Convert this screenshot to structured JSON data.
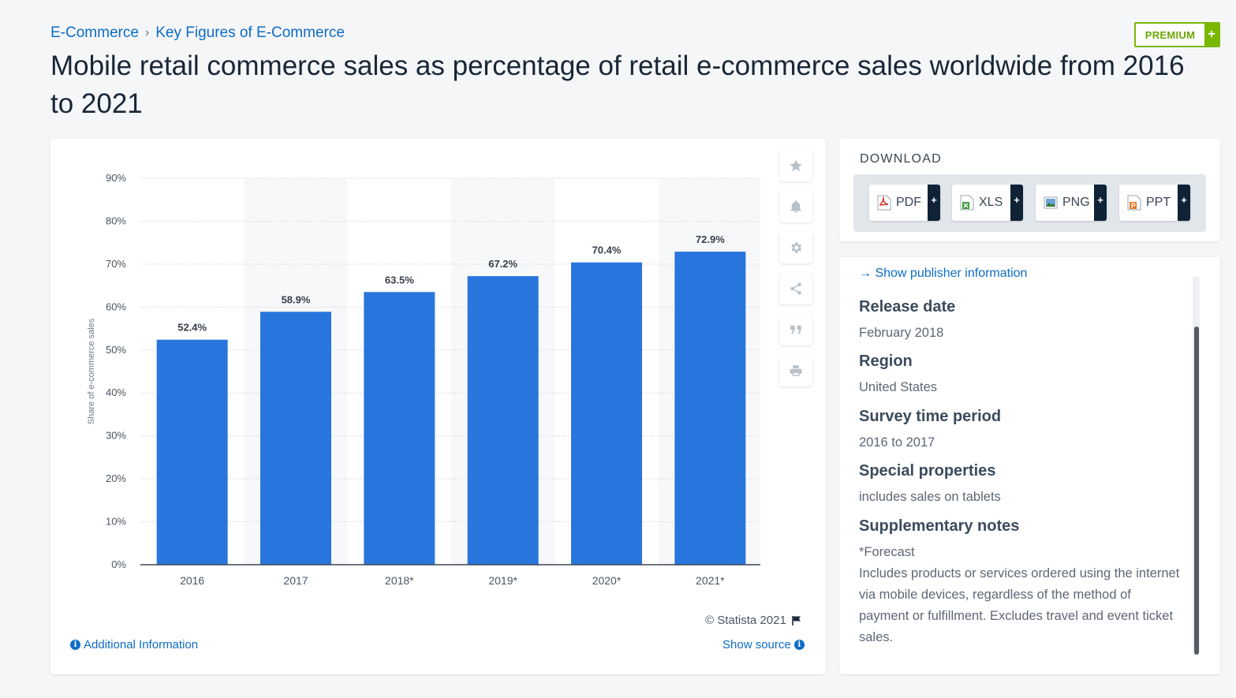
{
  "breadcrumb": {
    "item1": "E-Commerce",
    "sep": "›",
    "item2": "Key Figures of E-Commerce"
  },
  "premium": {
    "label": "PREMIUM",
    "plus": "+"
  },
  "page_title": "Mobile retail commerce sales as percentage of retail e-commerce sales worldwide from 2016 to 2021",
  "colors": {
    "bar": "#2876dd",
    "accent": "#0d6cc7",
    "premium": "#7ab800",
    "stripe": "#f7f8f9"
  },
  "chart_data": {
    "type": "bar",
    "categories": [
      "2016",
      "2017",
      "2018*",
      "2019*",
      "2020*",
      "2021*"
    ],
    "values": [
      52.4,
      58.9,
      63.5,
      67.2,
      70.4,
      72.9
    ],
    "value_labels": [
      "52.4%",
      "58.9%",
      "63.5%",
      "67.2%",
      "70.4%",
      "72.9%"
    ],
    "ylabel": "Share of e-commerce sales",
    "ylim": [
      0,
      90
    ],
    "yticks": [
      0,
      10,
      20,
      30,
      40,
      50,
      60,
      70,
      80,
      90
    ],
    "ytick_labels": [
      "0%",
      "10%",
      "20%",
      "30%",
      "40%",
      "50%",
      "60%",
      "70%",
      "80%",
      "90%"
    ],
    "grid": true
  },
  "tools": [
    "star-icon",
    "bell-icon",
    "gear-icon",
    "share-icon",
    "quote-icon",
    "print-icon"
  ],
  "credit": "© Statista 2021",
  "additional_info": "Additional Information",
  "show_source": "Show source",
  "download": {
    "title": "DOWNLOAD",
    "buttons": [
      {
        "label": "PDF",
        "icon": "pdf-file-icon",
        "plus": "+"
      },
      {
        "label": "XLS",
        "icon": "xls-file-icon",
        "plus": "+"
      },
      {
        "label": "PNG",
        "icon": "png-file-icon",
        "plus": "+"
      },
      {
        "label": "PPT",
        "icon": "ppt-file-icon",
        "plus": "+"
      }
    ]
  },
  "info": {
    "show_publisher": "→ Show publisher information",
    "items": [
      {
        "key": "Release date",
        "value": "February 2018"
      },
      {
        "key": "Region",
        "value": "United States"
      },
      {
        "key": "Survey time period",
        "value": "2016 to 2017"
      },
      {
        "key": "Special properties",
        "value": "includes sales on tablets"
      },
      {
        "key": "Supplementary notes",
        "value": "*Forecast",
        "value2": "Includes products or services ordered using the internet via mobile devices, regardless of the method of payment or fulfillment. Excludes travel and event ticket sales."
      }
    ]
  }
}
